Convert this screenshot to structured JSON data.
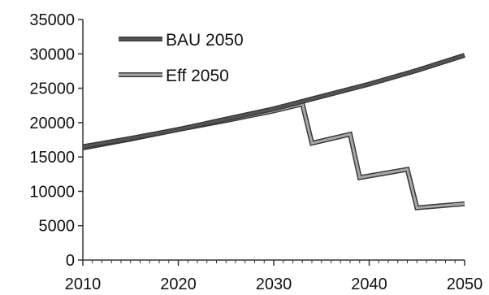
{
  "chart_data": {
    "type": "line",
    "title": "",
    "xlabel": "",
    "ylabel": "",
    "xlim": [
      2010,
      2050
    ],
    "ylim": [
      0,
      35000
    ],
    "x_ticks": [
      2010,
      2020,
      2030,
      2040,
      2050
    ],
    "y_ticks": [
      0,
      5000,
      10000,
      15000,
      20000,
      25000,
      30000,
      35000
    ],
    "grid": false,
    "legend_position": "top-left",
    "series": [
      {
        "name": "BAU 2050",
        "color": "#555555",
        "points": [
          [
            2010,
            16500
          ],
          [
            2015,
            17700
          ],
          [
            2020,
            19000
          ],
          [
            2025,
            20500
          ],
          [
            2030,
            22000
          ],
          [
            2035,
            23800
          ],
          [
            2040,
            25600
          ],
          [
            2045,
            27600
          ],
          [
            2050,
            29800
          ]
        ]
      },
      {
        "name": "Eff 2050",
        "color": "#a8a8a8",
        "points": [
          [
            2010,
            16300
          ],
          [
            2015,
            17600
          ],
          [
            2020,
            19000
          ],
          [
            2025,
            20300
          ],
          [
            2030,
            21700
          ],
          [
            2033,
            22700
          ],
          [
            2034,
            17000
          ],
          [
            2038,
            18300
          ],
          [
            2039,
            12000
          ],
          [
            2044,
            13200
          ],
          [
            2045,
            7600
          ],
          [
            2050,
            8200
          ]
        ]
      }
    ]
  }
}
